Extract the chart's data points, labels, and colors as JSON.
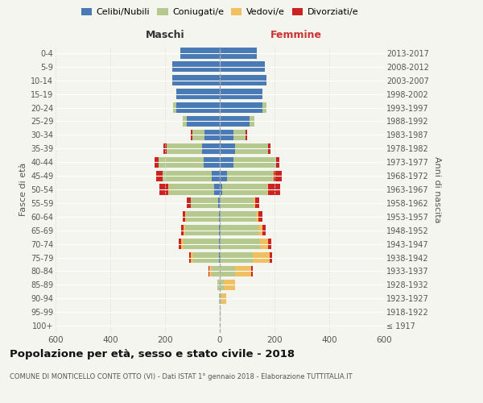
{
  "age_groups": [
    "100+",
    "95-99",
    "90-94",
    "85-89",
    "80-84",
    "75-79",
    "70-74",
    "65-69",
    "60-64",
    "55-59",
    "50-54",
    "45-49",
    "40-44",
    "35-39",
    "30-34",
    "25-29",
    "20-24",
    "15-19",
    "10-14",
    "5-9",
    "0-4"
  ],
  "birth_years": [
    "≤ 1917",
    "1918-1922",
    "1923-1927",
    "1928-1932",
    "1933-1937",
    "1938-1942",
    "1943-1947",
    "1948-1952",
    "1953-1957",
    "1958-1962",
    "1963-1967",
    "1968-1972",
    "1973-1977",
    "1978-1982",
    "1983-1987",
    "1988-1992",
    "1993-1997",
    "1998-2002",
    "2003-2007",
    "2008-2012",
    "2013-2017"
  ],
  "males": {
    "celibi": [
      0,
      0,
      0,
      0,
      0,
      2,
      2,
      2,
      4,
      5,
      20,
      30,
      60,
      65,
      55,
      120,
      160,
      160,
      175,
      175,
      145
    ],
    "coniugati": [
      0,
      0,
      3,
      8,
      30,
      95,
      130,
      125,
      120,
      100,
      165,
      180,
      165,
      130,
      45,
      15,
      10,
      0,
      0,
      0,
      0
    ],
    "vedovi": [
      0,
      0,
      1,
      2,
      8,
      10,
      8,
      5,
      2,
      2,
      2,
      0,
      0,
      0,
      0,
      0,
      2,
      0,
      0,
      0,
      0
    ],
    "divorziati": [
      0,
      0,
      0,
      0,
      2,
      5,
      10,
      8,
      10,
      15,
      35,
      22,
      12,
      10,
      5,
      0,
      0,
      0,
      0,
      0,
      0
    ]
  },
  "females": {
    "nubili": [
      0,
      0,
      0,
      0,
      0,
      2,
      2,
      2,
      3,
      3,
      8,
      25,
      50,
      55,
      50,
      110,
      155,
      155,
      170,
      165,
      135
    ],
    "coniugate": [
      0,
      2,
      5,
      15,
      55,
      120,
      145,
      140,
      130,
      120,
      165,
      170,
      155,
      120,
      45,
      15,
      15,
      0,
      0,
      0,
      0
    ],
    "vedove": [
      0,
      2,
      18,
      40,
      60,
      60,
      30,
      15,
      8,
      5,
      2,
      2,
      2,
      0,
      0,
      0,
      0,
      0,
      0,
      0,
      0
    ],
    "divorziate": [
      0,
      0,
      0,
      0,
      5,
      8,
      10,
      10,
      15,
      15,
      45,
      30,
      12,
      10,
      5,
      0,
      0,
      0,
      0,
      0,
      0
    ]
  },
  "colors": {
    "celibi": "#4a7ab5",
    "coniugati": "#b5c98e",
    "vedovi": "#f0c060",
    "divorziati": "#cc2222"
  },
  "xlim": 600,
  "title": "Popolazione per età, sesso e stato civile - 2018",
  "subtitle": "COMUNE DI MONTICELLO CONTE OTTO (VI) - Dati ISTAT 1° gennaio 2018 - Elaborazione TUTTITALIA.IT",
  "ylabel": "Fasce di età",
  "ylabel_right": "Anni di nascita",
  "background_color": "#f5f5f0"
}
